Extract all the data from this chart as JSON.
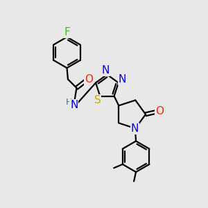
{
  "bg_color": "#e8e8e8",
  "atom_colors": {
    "F": "#33cc00",
    "O": "#ff2200",
    "N": "#0000ee",
    "S": "#ccaa00",
    "H": "#447777",
    "C": "#000000"
  },
  "bond_color": "#000000",
  "bond_width": 1.6,
  "font_size": 10,
  "fig_size": [
    3.0,
    3.0
  ],
  "dpi": 100
}
